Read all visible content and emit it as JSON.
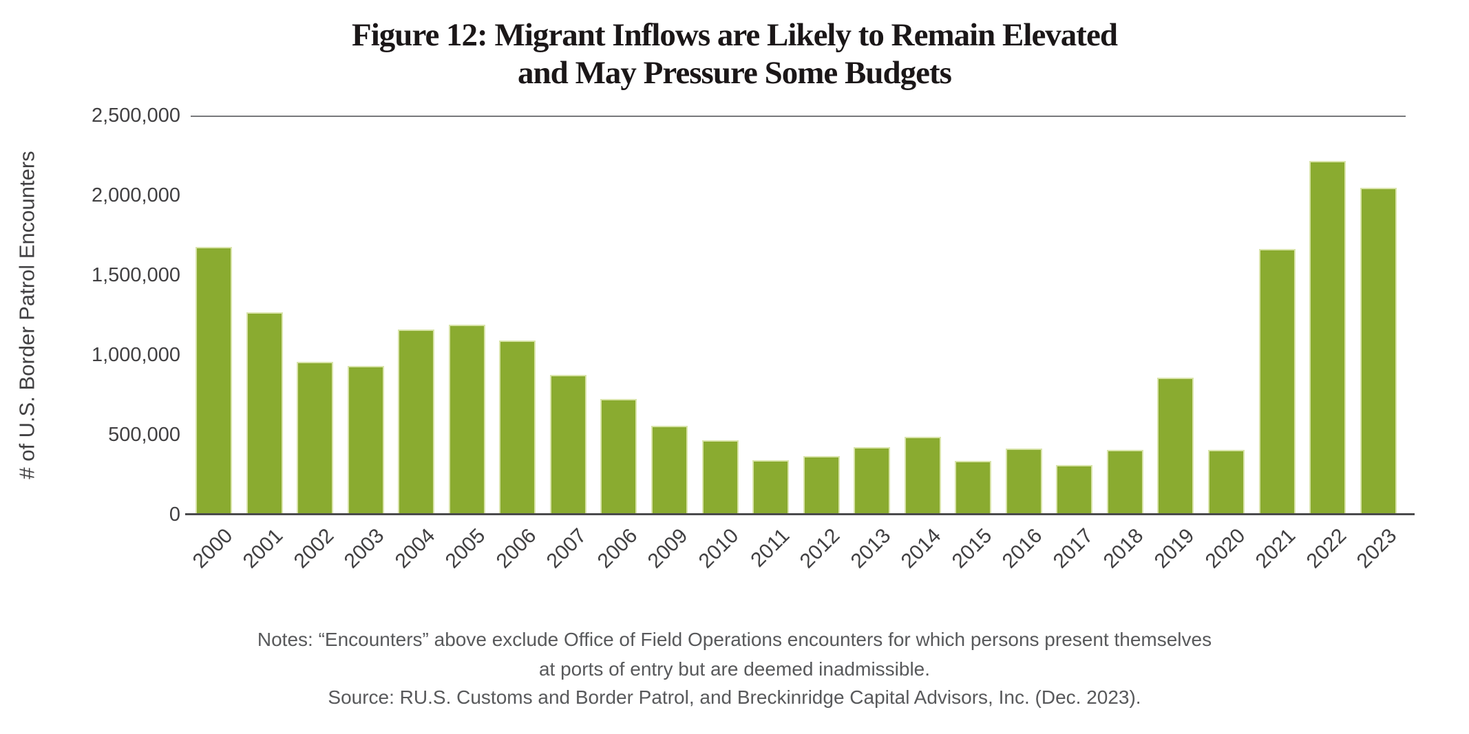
{
  "figure": {
    "title_line1": "Figure 12: Migrant Inflows are Likely to Remain Elevated",
    "title_line2": "and May Pressure Some Budgets",
    "notes_line1": "Notes: “Encounters” above exclude Office of Field Operations encounters for which persons present themselves",
    "notes_line2": "at ports of entry but are deemed inadmissible.",
    "source_line": "Source: RU.S. Customs and Border Patrol, and Breckinridge Capital Advisors, Inc. (Dec. 2023)."
  },
  "chart_data": {
    "type": "bar",
    "title": "Figure 12: Migrant Inflows are Likely to Remain Elevated and May Pressure Some Budgets",
    "xlabel": "",
    "ylabel": "# of U.S. Border Patrol Encounters",
    "ylim": [
      0,
      2500000
    ],
    "grid": false,
    "legend": "none",
    "bar_color": "#8aab30",
    "bar_edge_color": "#d9e4aa",
    "axis_line_color": "#4a4a4c",
    "top_border_color": "#77787b",
    "ytick_labels_bottom_to_top": [
      "0",
      "500,000",
      "1,000,000",
      "1,500,000",
      "2,000,000",
      "2,500,000"
    ],
    "categories": [
      "2000",
      "2001",
      "2002",
      "2003",
      "2004",
      "2005",
      "2006",
      "2007",
      "2006",
      "2009",
      "2010",
      "2011",
      "2012",
      "2013",
      "2014",
      "2015",
      "2016",
      "2017",
      "2018",
      "2019",
      "2020",
      "2021",
      "2022",
      "2023"
    ],
    "values": [
      1676438,
      1266214,
      955310,
      931557,
      1160395,
      1189075,
      1089092,
      876704,
      723825,
      556041,
      463382,
      340252,
      364768,
      420789,
      486651,
      337117,
      415816,
      310531,
      404142,
      859501,
      405036,
      1662167,
      2214652,
      2045838
    ]
  }
}
